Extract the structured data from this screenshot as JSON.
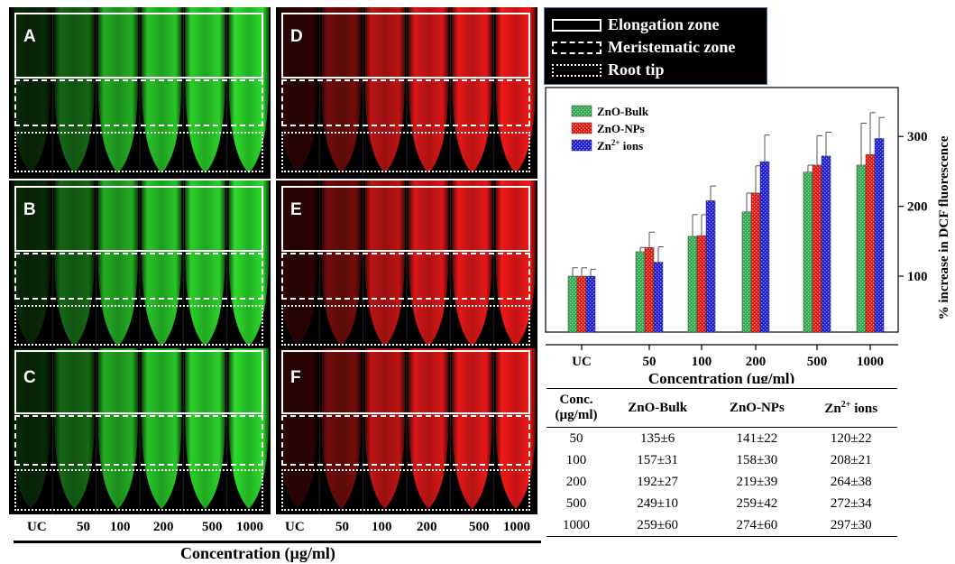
{
  "panels": [
    {
      "label": "A",
      "channel": "green"
    },
    {
      "label": "D",
      "channel": "red"
    },
    {
      "label": "B",
      "channel": "green"
    },
    {
      "label": "E",
      "channel": "red"
    },
    {
      "label": "C",
      "channel": "green"
    },
    {
      "label": "F",
      "channel": "red"
    }
  ],
  "image_concentrations": [
    "UC",
    "50",
    "100",
    "200",
    "500",
    "1000"
  ],
  "image_axis_title": "Concentration (µg/ml)",
  "zone_legend": [
    {
      "style": "solid",
      "label": "Elongation zone"
    },
    {
      "style": "dashed",
      "label": "Meristematic zone"
    },
    {
      "style": "dotted",
      "label": "Root tip"
    }
  ],
  "colors": {
    "green": "#2ee82e",
    "red": "#ff1a1a",
    "zno_bulk": "#2fa84f",
    "zno_nps": "#e3170d",
    "zn_ions": "#1c1cd6"
  },
  "chart_data": {
    "type": "bar",
    "categories": [
      "UC",
      "50",
      "100",
      "200",
      "500",
      "1000"
    ],
    "series": [
      {
        "name": "ZnO-Bulk",
        "values": [
          100,
          135,
          157,
          192,
          249,
          259
        ],
        "errors": [
          12,
          6,
          31,
          27,
          10,
          60
        ],
        "color": "#2fa84f"
      },
      {
        "name": "ZnO-NPs",
        "values": [
          100,
          141,
          158,
          219,
          259,
          274
        ],
        "errors": [
          12,
          22,
          30,
          39,
          42,
          60
        ],
        "color": "#e3170d"
      },
      {
        "name": "Zn2+ ions",
        "values": [
          100,
          120,
          208,
          264,
          272,
          297
        ],
        "errors": [
          10,
          22,
          21,
          38,
          34,
          30
        ],
        "color": "#1c1cd6"
      }
    ],
    "xlabel": "Concentration (µg/ml)",
    "ylabel": "% increase in DCF fluorescence",
    "yticks": [
      100,
      200,
      300
    ],
    "ylim": [
      20,
      370
    ],
    "legend": "top-left",
    "grid": false
  },
  "table": {
    "headers": [
      "Conc. (µg/ml)",
      "ZnO-Bulk",
      "ZnO-NPs",
      "Zn2+ ions"
    ],
    "rows": [
      [
        "50",
        "135±6",
        "141±22",
        "120±22"
      ],
      [
        "100",
        "157±31",
        "158±30",
        "208±21"
      ],
      [
        "200",
        "192±27",
        "219±39",
        "264±38"
      ],
      [
        "500",
        "249±10",
        "259±42",
        "272±34"
      ],
      [
        "1000",
        "259±60",
        "274±60",
        "297±30"
      ]
    ]
  }
}
